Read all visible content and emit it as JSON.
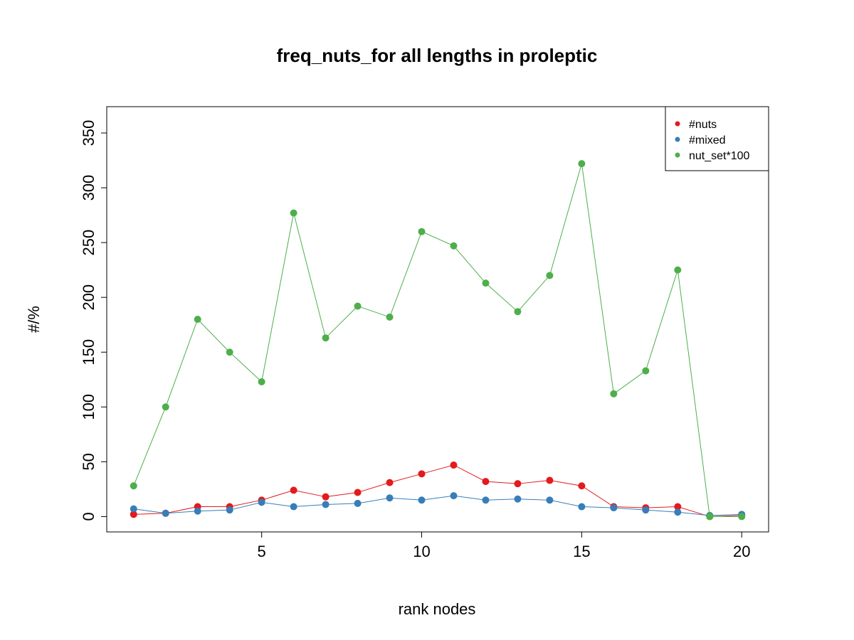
{
  "chart_data": {
    "type": "line",
    "title": "freq_nuts_for all lengths in proleptic",
    "xlabel": "rank nodes",
    "ylabel": "#/%",
    "xlim": [
      0.16,
      20.84
    ],
    "ylim": [
      -14,
      374
    ],
    "x_ticks": [
      5,
      10,
      15,
      20
    ],
    "y_ticks": [
      0,
      50,
      100,
      150,
      200,
      250,
      300,
      350
    ],
    "grid": false,
    "legend_position": "top-right",
    "x": [
      1,
      2,
      3,
      4,
      5,
      6,
      7,
      8,
      9,
      10,
      11,
      12,
      13,
      14,
      15,
      16,
      17,
      18,
      19,
      20
    ],
    "series": [
      {
        "name": "#nuts",
        "color": "#E41A1C",
        "values": [
          2,
          3,
          9,
          9,
          15,
          24,
          18,
          22,
          31,
          39,
          47,
          32,
          30,
          33,
          28,
          9,
          8,
          9,
          0,
          1
        ]
      },
      {
        "name": "#mixed",
        "color": "#377EB8",
        "values": [
          7,
          3,
          5,
          6,
          13,
          9,
          11,
          12,
          17,
          15,
          19,
          15,
          16,
          15,
          9,
          8,
          6,
          4,
          1,
          2
        ]
      },
      {
        "name": "nut_set*100",
        "color": "#4DAF4A",
        "values": [
          28,
          100,
          180,
          150,
          123,
          277,
          163,
          192,
          182,
          260,
          247,
          213,
          187,
          220,
          322,
          112,
          133,
          225,
          0,
          0
        ]
      }
    ]
  }
}
